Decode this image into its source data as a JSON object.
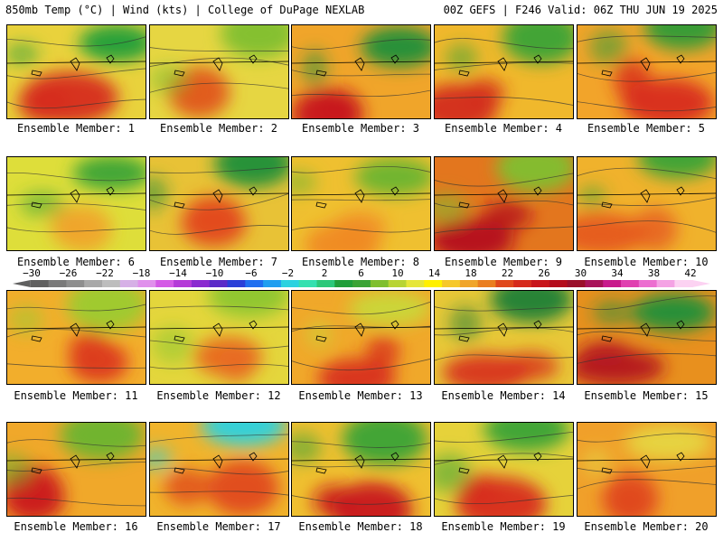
{
  "header": {
    "left": "850mb Temp (°C) | Wind (kts) | College of DuPage NEXLAB",
    "right": "00Z GEFS | F246 Valid: 06Z THU JUN 19 2025"
  },
  "panels": [
    {
      "caption": "Ensemble Member: 1",
      "base": "#e9d23c",
      "hot": "#d62a1c",
      "cool": "#1f9e3a"
    },
    {
      "caption": "Ensemble Member: 2",
      "base": "#e6d642",
      "hot": "#e15a1e",
      "cool": "#7fbf2e"
    },
    {
      "caption": "Ensemble Member: 3",
      "base": "#f0a52a",
      "hot": "#c8141a",
      "cool": "#1f8f3a"
    },
    {
      "caption": "Ensemble Member: 4",
      "base": "#f0b82c",
      "hot": "#d32a1c",
      "cool": "#3aa336"
    },
    {
      "caption": "Ensemble Member: 5",
      "base": "#f2a42a",
      "hot": "#d82a1c",
      "cool": "#2f9b36"
    },
    {
      "caption": "Ensemble Member: 6",
      "base": "#dede3a",
      "hot": "#f0a52a",
      "cool": "#3aa336"
    },
    {
      "caption": "Ensemble Member: 7",
      "base": "#e8c236",
      "hot": "#e34a1c",
      "cool": "#1f8f3a"
    },
    {
      "caption": "Ensemble Member: 8",
      "base": "#efc030",
      "hot": "#f08a24",
      "cool": "#6ab42e"
    },
    {
      "caption": "Ensemble Member: 9",
      "base": "#e3761e",
      "hot": "#b40c1c",
      "cool": "#7fbf2e"
    },
    {
      "caption": "Ensemble Member: 10",
      "base": "#f0b22c",
      "hot": "#e65a1e",
      "cool": "#3aa336"
    },
    {
      "caption": "Ensemble Member: 11",
      "base": "#f2ae2c",
      "hot": "#dc3a1c",
      "cool": "#9ccb2e"
    },
    {
      "caption": "Ensemble Member: 12",
      "base": "#e4d63c",
      "hot": "#e86a20",
      "cool": "#8cc62e"
    },
    {
      "caption": "Ensemble Member: 13",
      "base": "#f0a82a",
      "hot": "#d8301c",
      "cool": "#c9d838"
    },
    {
      "caption": "Ensemble Member: 14",
      "base": "#e8c838",
      "hot": "#d8321c",
      "cool": "#1f7f36"
    },
    {
      "caption": "Ensemble Member: 15",
      "base": "#e8901e",
      "hot": "#b41420",
      "cool": "#1f8f3a"
    },
    {
      "caption": "Ensemble Member: 16",
      "base": "#f0a82a",
      "hot": "#cc1c1a",
      "cool": "#6ab42e"
    },
    {
      "caption": "Ensemble Member: 17",
      "base": "#f0b42c",
      "hot": "#e0481c",
      "cool": "#2bd2e0"
    },
    {
      "caption": "Ensemble Member: 18",
      "base": "#efc030",
      "hot": "#c8141a",
      "cool": "#3aa336"
    },
    {
      "caption": "Ensemble Member: 19",
      "base": "#e6d23a",
      "hot": "#d82a1c",
      "cool": "#3aa336"
    },
    {
      "caption": "Ensemble Member: 20",
      "base": "#f0a02a",
      "hot": "#e0481c",
      "cool": "#e6d642"
    }
  ],
  "colorbar": {
    "tick_labels": [
      "−30",
      "−26",
      "−22",
      "−18",
      "−14",
      "−10",
      "−6",
      "−2",
      "2",
      "6",
      "10",
      "14",
      "18",
      "22",
      "26",
      "30",
      "34",
      "38",
      "42"
    ],
    "colors": [
      "#606060",
      "#7a7a7a",
      "#8e8e8e",
      "#a8a8a8",
      "#bdbdbd",
      "#d6b0e6",
      "#e090ec",
      "#d45ae6",
      "#b43ad8",
      "#8a2ad0",
      "#5a2ac8",
      "#2a3ed8",
      "#1f6ef0",
      "#1f9ef0",
      "#2bd2e0",
      "#34e0b0",
      "#2bc87a",
      "#1f9e3a",
      "#3aa336",
      "#7fbf2e",
      "#b8d434",
      "#e6e63a",
      "#fff000",
      "#f6c82a",
      "#f0a52a",
      "#ea7e20",
      "#e0481c",
      "#d62a1c",
      "#c8141a",
      "#b40c1c",
      "#9a0e2a",
      "#a8125a",
      "#c81a8c",
      "#e040b0",
      "#ec6ed0",
      "#f4a2e4",
      "#fcd2f2"
    ]
  }
}
